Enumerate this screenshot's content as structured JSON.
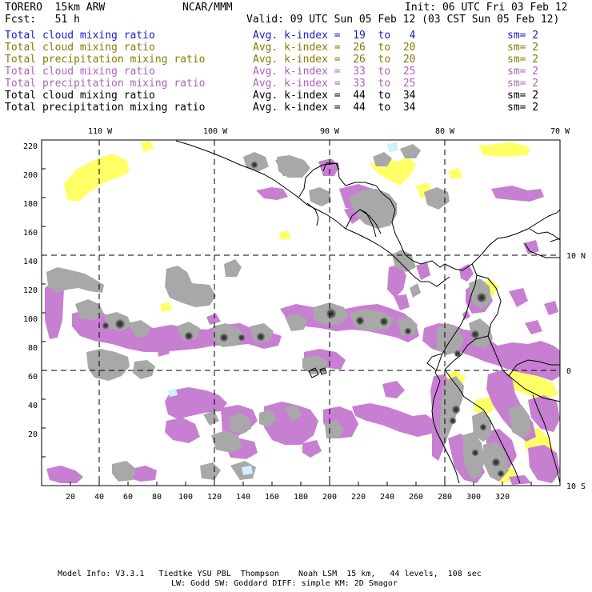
{
  "header": {
    "model": "TORERO  15km ARW",
    "org": "NCAR/MMM",
    "init": "Init: 06 UTC Fri 03 Feb 12",
    "fcst": "Fcst:   51 h",
    "valid": "Valid: 09 UTC Sun 05 Feb 12 (03 CST Sun 05 Feb 12)"
  },
  "legend": [
    {
      "field": "Total cloud mixing ratio",
      "kindex": "Avg. k-index =  19  to   4",
      "sm": "sm= 2",
      "color": "#1a1acc"
    },
    {
      "field": "Total cloud mixing ratio",
      "kindex": "Avg. k-index =  26  to  20",
      "sm": "sm= 2",
      "color": "#8c7a00"
    },
    {
      "field": "Total precipitation mixing ratio",
      "kindex": "Avg. k-index =  26  to  20",
      "sm": "sm= 2",
      "color": "#8c7a00"
    },
    {
      "field": "Total cloud mixing ratio",
      "kindex": "Avg. k-index =  33  to  25",
      "sm": "sm= 2",
      "color": "#b060c0"
    },
    {
      "field": "Total precipitation mixing ratio",
      "kindex": "Avg. k-index =  33  to  25",
      "sm": "sm= 2",
      "color": "#b060c0"
    },
    {
      "field": "Total cloud mixing ratio",
      "kindex": "Avg. k-index =  44  to  34",
      "sm": "sm= 2",
      "color": "#000000"
    },
    {
      "field": "Total precipitation mixing ratio",
      "kindex": "Avg. k-index =  44  to  34",
      "sm": "sm= 2",
      "color": "#000000"
    }
  ],
  "axes": {
    "top_lon_labels": [
      "110 W",
      "100 W",
      "90 W",
      "80 W",
      "70 W"
    ],
    "right_lat_labels": [
      "10 N",
      "0",
      "10 S"
    ],
    "x_ticks": [
      "20",
      "40",
      "60",
      "80",
      "100",
      "120",
      "140",
      "160",
      "180",
      "200",
      "220",
      "240",
      "260",
      "280",
      "300",
      "320"
    ],
    "y_ticks": [
      "220",
      "200",
      "180",
      "160",
      "140",
      "120",
      "100",
      "80",
      "60",
      "40",
      "20"
    ]
  },
  "colors": {
    "yellow": "#ffff66",
    "violet": "#c77fd1",
    "gray": "#a8a8a8",
    "dark": "#404040",
    "light_blue": "#cfeffc"
  },
  "footer": {
    "line1": "Model Info: V3.3.1   Tiedtke YSU PBL  Thompson    Noah LSM  15 km,   44 levels,  108 sec",
    "line2": "LW: Godd SW: Goddard DIFF: simple KM: 2D Smagor"
  }
}
